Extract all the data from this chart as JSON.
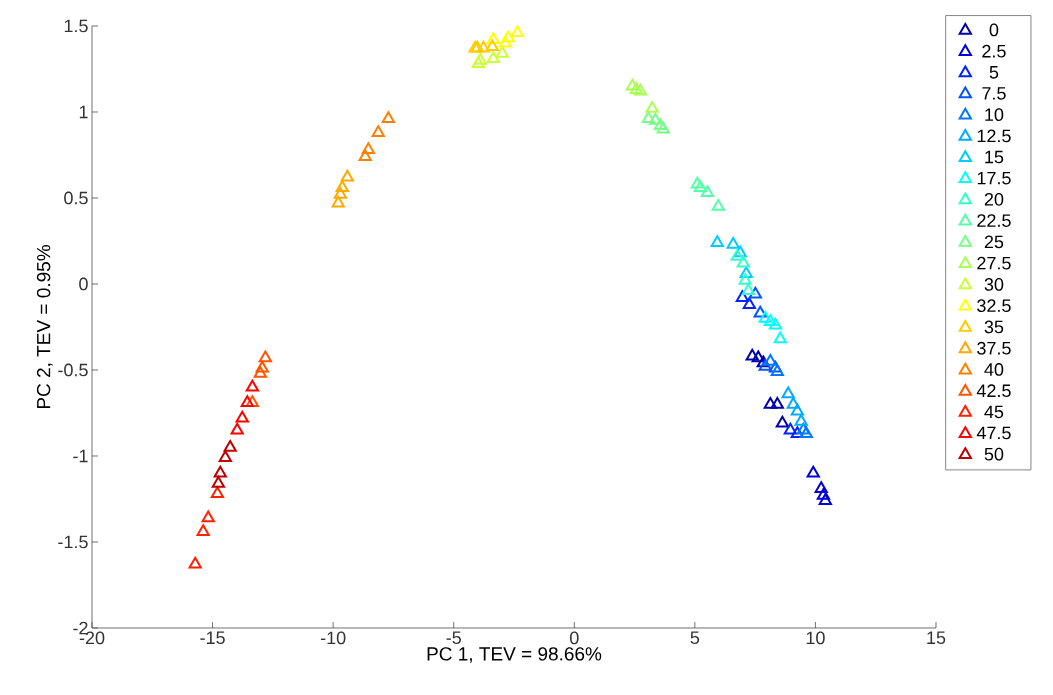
{
  "chart_data": {
    "type": "scatter",
    "xlabel": "PC 1, TEV = 98.66%",
    "ylabel": "PC 2, TEV = 0.95%",
    "xlim": [
      -20,
      15
    ],
    "xticks": [
      -20,
      -15,
      -10,
      -5,
      0,
      5,
      10,
      15
    ],
    "ylim": [
      -2,
      1.5
    ],
    "yticks": [
      -2,
      -1.5,
      -1,
      -0.5,
      0,
      0.5,
      1,
      1.5
    ],
    "marker": "triangle",
    "legend": "right",
    "grid": false,
    "series": [
      {
        "name": "0",
        "color": "#0000aa",
        "x": [
          7.38,
          7.63,
          7.84,
          8.13,
          8.42,
          8.63
        ],
        "values": [
          -0.42,
          -0.43,
          -0.46,
          -0.7,
          -0.7,
          -0.81
        ]
      },
      {
        "name": "2.5",
        "color": "#0000dd",
        "x": [
          9.91,
          10.24,
          10.33,
          10.41
        ],
        "values": [
          -1.1,
          -1.19,
          -1.23,
          -1.26
        ]
      },
      {
        "name": "5",
        "color": "#0022ff",
        "x": [
          6.97,
          7.26,
          8.96,
          9.25
        ],
        "values": [
          -0.08,
          -0.12,
          -0.85,
          -0.87
        ]
      },
      {
        "name": "7.5",
        "color": "#0055ff",
        "x": [
          7.51,
          7.71,
          7.92,
          8.34
        ],
        "values": [
          -0.06,
          -0.17,
          -0.48,
          -0.49
        ]
      },
      {
        "name": "10",
        "color": "#0077ff",
        "x": [
          8.13,
          8.42,
          9.5,
          9.62
        ],
        "values": [
          -0.45,
          -0.51,
          -0.85,
          -0.87
        ]
      },
      {
        "name": "12.5",
        "color": "#00aaff",
        "x": [
          8.87,
          9.08,
          9.25,
          9.41
        ],
        "values": [
          -0.64,
          -0.7,
          -0.74,
          -0.8
        ]
      },
      {
        "name": "15",
        "color": "#00ccff",
        "x": [
          5.93,
          6.59,
          6.88,
          7.13
        ],
        "values": [
          0.24,
          0.23,
          0.18,
          0.06
        ]
      },
      {
        "name": "17.5",
        "color": "#00ffff",
        "x": [
          7.92,
          8.13,
          8.34,
          8.54
        ],
        "values": [
          -0.2,
          -0.22,
          -0.24,
          -0.32
        ]
      },
      {
        "name": "20",
        "color": "#33ffcc",
        "x": [
          6.76,
          7.01,
          7.09,
          7.22
        ],
        "values": [
          0.16,
          0.12,
          0.02,
          -0.04
        ]
      },
      {
        "name": "22.5",
        "color": "#55ffaa",
        "x": [
          5.1,
          5.23,
          5.52,
          5.97
        ],
        "values": [
          0.58,
          0.56,
          0.53,
          0.45
        ]
      },
      {
        "name": "25",
        "color": "#77ff88",
        "x": [
          3.07,
          3.36,
          3.57,
          3.69
        ],
        "values": [
          0.96,
          0.95,
          0.92,
          0.9
        ]
      },
      {
        "name": "27.5",
        "color": "#aaff55",
        "x": [
          2.41,
          2.57,
          2.74,
          3.23
        ],
        "values": [
          1.15,
          1.13,
          1.12,
          1.02
        ]
      },
      {
        "name": "30",
        "color": "#ccff33",
        "x": [
          -3.98,
          -3.9,
          -3.36,
          -2.99
        ],
        "values": [
          1.28,
          1.3,
          1.31,
          1.34
        ]
      },
      {
        "name": "32.5",
        "color": "#ffff00",
        "x": [
          -3.36,
          -2.86,
          -2.74,
          -2.36
        ],
        "values": [
          1.42,
          1.4,
          1.43,
          1.46
        ]
      },
      {
        "name": "35",
        "color": "#ffcc00",
        "x": [
          -4.11,
          -4.02,
          -3.77,
          -3.4
        ],
        "values": [
          1.37,
          1.37,
          1.37,
          1.38
        ]
      },
      {
        "name": "37.5",
        "color": "#ffaa00",
        "x": [
          -9.79,
          -9.7,
          -9.62,
          -9.41
        ],
        "values": [
          0.47,
          0.52,
          0.56,
          0.62
        ]
      },
      {
        "name": "40",
        "color": "#ff8000",
        "x": [
          -8.67,
          -8.54,
          -8.13,
          -7.71
        ],
        "values": [
          0.74,
          0.78,
          0.88,
          0.96
        ]
      },
      {
        "name": "42.5",
        "color": "#ff5500",
        "x": [
          -13.35,
          -13.02,
          -12.94,
          -12.81
        ],
        "values": [
          -0.69,
          -0.52,
          -0.49,
          -0.43
        ]
      },
      {
        "name": "45",
        "color": "#ff2200",
        "x": [
          -15.72,
          -15.39,
          -15.18,
          -14.8
        ],
        "values": [
          -1.63,
          -1.44,
          -1.36,
          -1.22
        ]
      },
      {
        "name": "47.5",
        "color": "#ff0000",
        "x": [
          -13.98,
          -13.77,
          -13.56,
          -13.35
        ],
        "values": [
          -0.85,
          -0.78,
          -0.69,
          -0.6
        ]
      },
      {
        "name": "50",
        "color": "#bb0000",
        "x": [
          -14.76,
          -14.68,
          -14.47,
          -14.27
        ],
        "values": [
          -1.16,
          -1.1,
          -1.01,
          -0.95
        ]
      }
    ]
  }
}
